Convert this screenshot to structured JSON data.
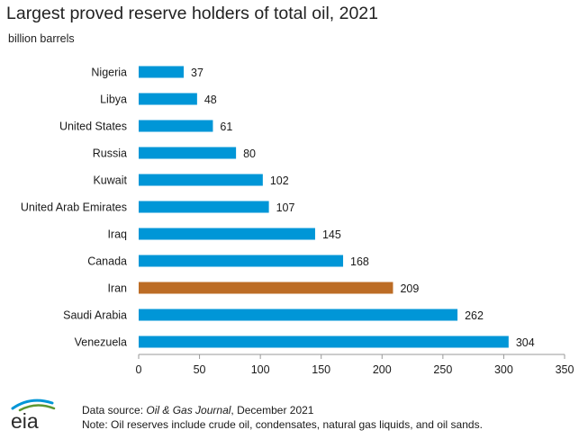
{
  "chart_data": {
    "type": "bar",
    "orientation": "horizontal",
    "title": "Largest proved reserve holders of total oil, 2021",
    "subtitle": "billion barrels",
    "categories": [
      "Nigeria",
      "Libya",
      "United States",
      "Russia",
      "Kuwait",
      "United Arab Emirates",
      "Iraq",
      "Canada",
      "Iran",
      "Saudi Arabia",
      "Venezuela"
    ],
    "values": [
      37,
      48,
      61,
      80,
      102,
      107,
      145,
      168,
      209,
      262,
      304
    ],
    "data_labels": [
      "37",
      "48",
      "61",
      "80",
      "102",
      "107",
      "145",
      "168",
      "209",
      "262",
      "304"
    ],
    "xlim": [
      0,
      350
    ],
    "xticks": [
      0,
      50,
      100,
      150,
      200,
      250,
      300,
      350
    ],
    "xtick_labels": [
      "0",
      "50",
      "100",
      "150",
      "200",
      "250",
      "300",
      "350"
    ],
    "grid": false,
    "bar_color": "#0096d7",
    "highlight_color": "#bc6c25",
    "highlight_category": "Iran"
  },
  "footer": {
    "source_prefix": "Data source: ",
    "source_publication": "Oil & Gas Journal",
    "source_suffix": ", December 2021",
    "note": "Note: Oil reserves include crude oil, condensates, natural gas liquids, and oil sands.",
    "logo_text": "eia"
  },
  "colors": {
    "logo_blue": "#0096d7",
    "logo_green": "#5d9732",
    "axis": "#999999"
  }
}
